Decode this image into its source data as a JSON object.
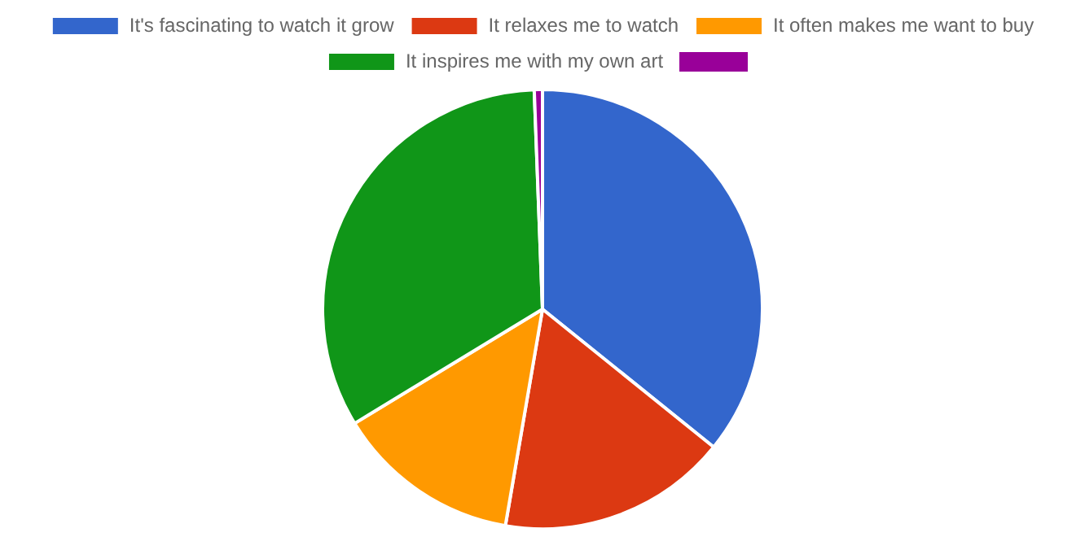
{
  "chart_data": {
    "type": "pie",
    "categories": [
      "It's fascinating to watch it grow",
      "It relaxes me to watch",
      "It often makes me want to buy",
      "It inspires me with my own art",
      null
    ],
    "values": [
      35.8,
      16.9,
      13.6,
      33.1,
      0.6
    ],
    "colors": [
      "#3366cc",
      "#dc3912",
      "#ff9900",
      "#109618",
      "#990099"
    ],
    "legend": "top"
  }
}
